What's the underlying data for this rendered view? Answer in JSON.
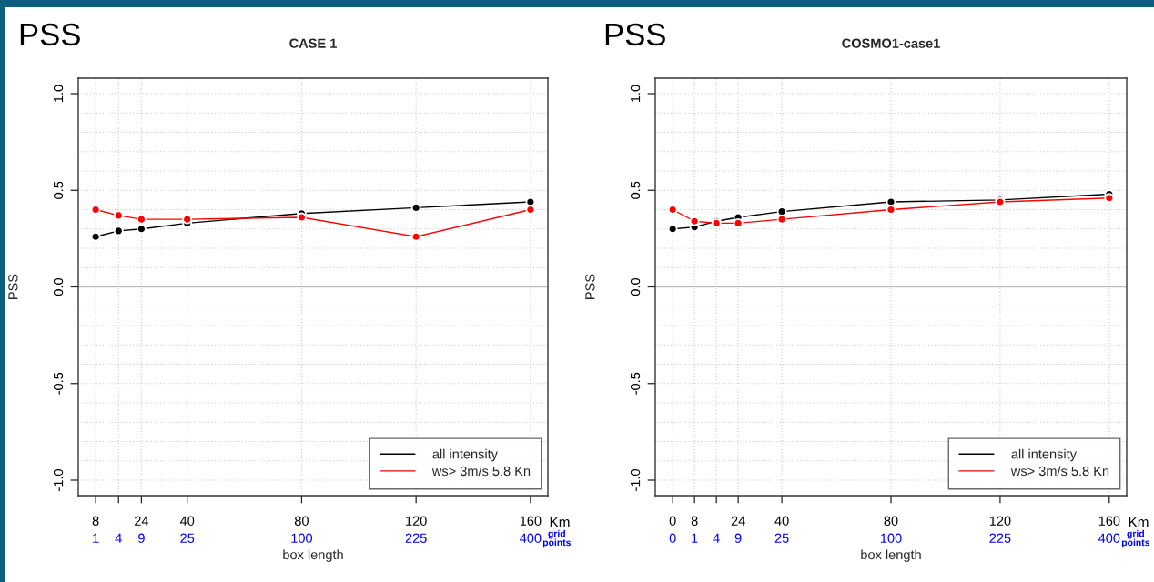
{
  "chart_data": [
    {
      "type": "line",
      "title": "CASE 1",
      "xlabel": "box length",
      "ylabel": "PSS",
      "annotations": [
        "PSS",
        "Km",
        "1",
        "4",
        "9",
        "25",
        "100",
        "225",
        "400",
        "grid\npoints"
      ],
      "x": [
        8,
        16,
        24,
        40,
        80,
        120,
        160
      ],
      "series": [
        {
          "name": "all intensity",
          "color": "#000000",
          "values": [
            0.26,
            0.29,
            0.3,
            0.33,
            0.38,
            0.41,
            0.44
          ]
        },
        {
          "name": "ws> 3m/s 5.8 Kn",
          "color": "#ff0000",
          "values": [
            0.4,
            0.37,
            0.35,
            0.35,
            0.36,
            0.26,
            0.4
          ]
        }
      ],
      "xlim": [
        1.92,
        166.08
      ],
      "xticks": [
        8,
        {
          "value": 16,
          "label": null
        },
        24,
        40,
        80,
        120,
        160
      ],
      "ylim": [
        -1.08,
        1.08
      ],
      "yticks": [
        {
          "value": -1.0,
          "label": "-1.0"
        },
        {
          "value": -0.9,
          "label": null
        },
        {
          "value": -0.8,
          "label": null
        },
        {
          "value": -0.7,
          "label": null
        },
        {
          "value": -0.6,
          "label": null
        },
        {
          "value": -0.5,
          "label": "-0.5"
        },
        {
          "value": -0.4,
          "label": null
        },
        {
          "value": -0.3,
          "label": null
        },
        {
          "value": -0.2,
          "label": null
        },
        {
          "value": -0.1,
          "label": null
        },
        {
          "value": 0.0,
          "label": "0.0"
        },
        {
          "value": 0.1,
          "label": null
        },
        {
          "value": 0.2,
          "label": null
        },
        {
          "value": 0.3,
          "label": null
        },
        {
          "value": 0.4,
          "label": null
        },
        {
          "value": 0.5,
          "label": "0.5"
        },
        {
          "value": 0.6,
          "label": null
        },
        {
          "value": 0.7,
          "label": null
        },
        {
          "value": 0.8,
          "label": null
        },
        {
          "value": 0.9,
          "label": null
        },
        {
          "value": 1.0,
          "label": "1.0"
        }
      ],
      "ref_lines": [
        {
          "axis": "y",
          "value": 0,
          "color": "#bebebe"
        }
      ],
      "grid": true,
      "legend": "bottom right",
      "marker": "circle",
      "line_style": "solid"
    },
    {
      "type": "line",
      "title": "COSMO1-case1",
      "xlabel": "box length",
      "ylabel": "PSS",
      "annotations": [
        "PSS",
        "Km",
        "0",
        "1",
        "4",
        "9",
        "25",
        "100",
        "225",
        "400",
        "grid\npoints"
      ],
      "x": [
        0,
        8,
        16,
        24,
        40,
        80,
        120,
        160
      ],
      "series": [
        {
          "name": "all intensity",
          "color": "#000000",
          "values": [
            0.3,
            0.31,
            0.34,
            0.36,
            0.39,
            0.44,
            0.45,
            0.48
          ]
        },
        {
          "name": "ws> 3m/s 5.8 Kn",
          "color": "#ff0000",
          "values": [
            0.4,
            0.34,
            0.33,
            0.33,
            0.35,
            0.4,
            0.44,
            0.46
          ]
        }
      ],
      "xlim": [
        -6.4,
        166.4
      ],
      "xticks": [
        0,
        8,
        {
          "value": 16,
          "label": null
        },
        24,
        40,
        80,
        120,
        160
      ],
      "ylim": [
        -1.08,
        1.08
      ],
      "yticks": [
        {
          "value": -1.0,
          "label": "-1.0"
        },
        {
          "value": -0.9,
          "label": null
        },
        {
          "value": -0.8,
          "label": null
        },
        {
          "value": -0.7,
          "label": null
        },
        {
          "value": -0.6,
          "label": null
        },
        {
          "value": -0.5,
          "label": "-0.5"
        },
        {
          "value": -0.4,
          "label": null
        },
        {
          "value": -0.3,
          "label": null
        },
        {
          "value": -0.2,
          "label": null
        },
        {
          "value": -0.1,
          "label": null
        },
        {
          "value": 0.0,
          "label": "0.0"
        },
        {
          "value": 0.1,
          "label": null
        },
        {
          "value": 0.2,
          "label": null
        },
        {
          "value": 0.3,
          "label": null
        },
        {
          "value": 0.4,
          "label": null
        },
        {
          "value": 0.5,
          "label": "0.5"
        },
        {
          "value": 0.6,
          "label": null
        },
        {
          "value": 0.7,
          "label": null
        },
        {
          "value": 0.8,
          "label": null
        },
        {
          "value": 0.9,
          "label": null
        },
        {
          "value": 1.0,
          "label": "1.0"
        }
      ],
      "ref_lines": [
        {
          "axis": "y",
          "value": 0,
          "color": "#bebebe"
        }
      ],
      "grid": true,
      "legend": "bottom right",
      "marker": "circle",
      "line_style": "solid"
    }
  ]
}
